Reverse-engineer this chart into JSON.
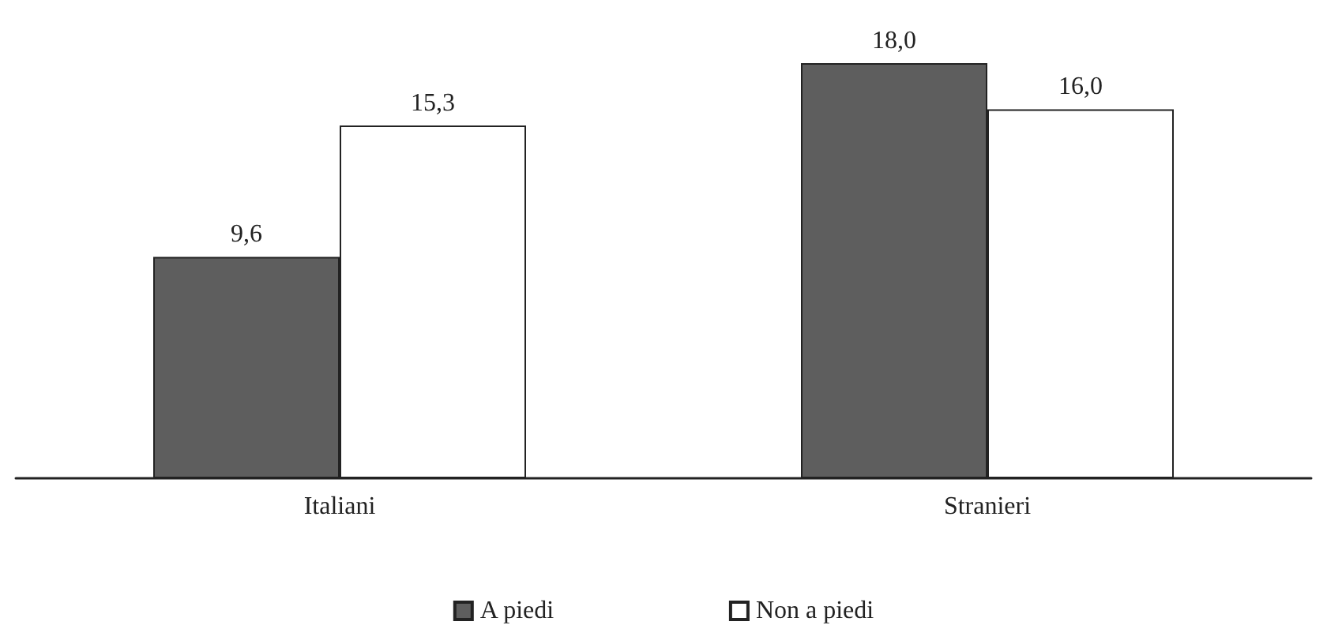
{
  "chart_data": {
    "type": "bar",
    "categories": [
      "Italiani",
      "Stranieri"
    ],
    "series": [
      {
        "name": "A piedi",
        "color": "#5e5e5e",
        "values": [
          9.6,
          18.0
        ],
        "value_labels": [
          "9,6",
          "18,0"
        ]
      },
      {
        "name": "Non a piedi",
        "color": "#ffffff",
        "values": [
          15.3,
          16.0
        ],
        "value_labels": [
          "15,3",
          "16,0"
        ]
      }
    ],
    "legend": "bottom",
    "grid": false,
    "tick_labels": "x"
  }
}
